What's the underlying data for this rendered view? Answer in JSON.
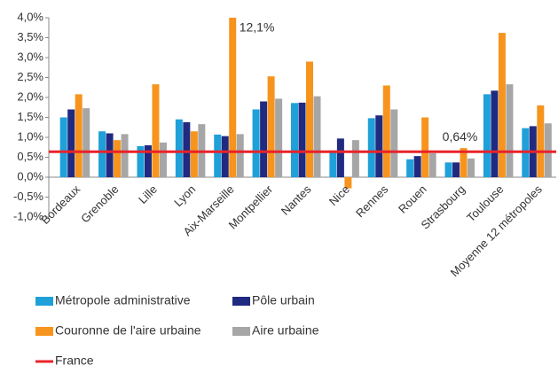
{
  "chart_data": {
    "type": "bar",
    "categories": [
      "Bordeaux",
      "Grenoble",
      "Lille",
      "Lyon",
      "Aix-Marseille",
      "Montpellier",
      "Nantes",
      "Nice",
      "Rennes",
      "Rouen",
      "Strasbourg",
      "Toulouse",
      "Moyenne 12 métropoles"
    ],
    "series": [
      {
        "name": "Métropole administrative",
        "color": "#1fa0d9",
        "values": [
          1.5,
          1.15,
          0.78,
          1.45,
          1.07,
          1.7,
          1.86,
          0.67,
          1.48,
          0.45,
          0.37,
          2.08,
          1.23
        ]
      },
      {
        "name": "Pôle urbain",
        "color": "#1f2a80",
        "values": [
          1.7,
          1.1,
          0.8,
          1.38,
          1.03,
          1.9,
          1.87,
          0.97,
          1.55,
          0.53,
          0.37,
          2.17,
          1.28
        ]
      },
      {
        "name": "Couronne de l'aire urbaine",
        "color": "#f7941d",
        "values": [
          2.08,
          0.93,
          2.33,
          1.15,
          12.1,
          2.53,
          2.9,
          -0.28,
          2.3,
          1.5,
          0.73,
          3.62,
          1.8
        ],
        "value_labels": [
          null,
          null,
          null,
          null,
          "12,1%",
          null,
          null,
          null,
          null,
          null,
          null,
          null,
          null
        ]
      },
      {
        "name": "Aire urbaine",
        "color": "#a6a6a6",
        "values": [
          1.73,
          1.08,
          0.87,
          1.33,
          1.08,
          1.97,
          2.03,
          0.93,
          1.7,
          0.6,
          0.47,
          2.33,
          1.35
        ]
      }
    ],
    "reference_lines": [
      {
        "name": "France",
        "color": "#e8232a",
        "value": 0.64,
        "value_label": "0,64%"
      }
    ],
    "ylim": [
      -1,
      4
    ],
    "yticks": [
      {
        "value": -1,
        "label": "-1,0%"
      },
      {
        "value": -0.5,
        "label": "-0,5%"
      },
      {
        "value": 0,
        "label": "0,0%"
      },
      {
        "value": 0.5,
        "label": "0,5%"
      },
      {
        "value": 1,
        "label": "1,0%"
      },
      {
        "value": 1.5,
        "label": "1,5%"
      },
      {
        "value": 2,
        "label": "2,0%"
      },
      {
        "value": 2.5,
        "label": "2,5%"
      },
      {
        "value": 3,
        "label": "3,0%"
      },
      {
        "value": 3.5,
        "label": "3,5%"
      },
      {
        "value": 4,
        "label": "4,0%"
      }
    ],
    "grid": false,
    "legend": "bottom"
  }
}
